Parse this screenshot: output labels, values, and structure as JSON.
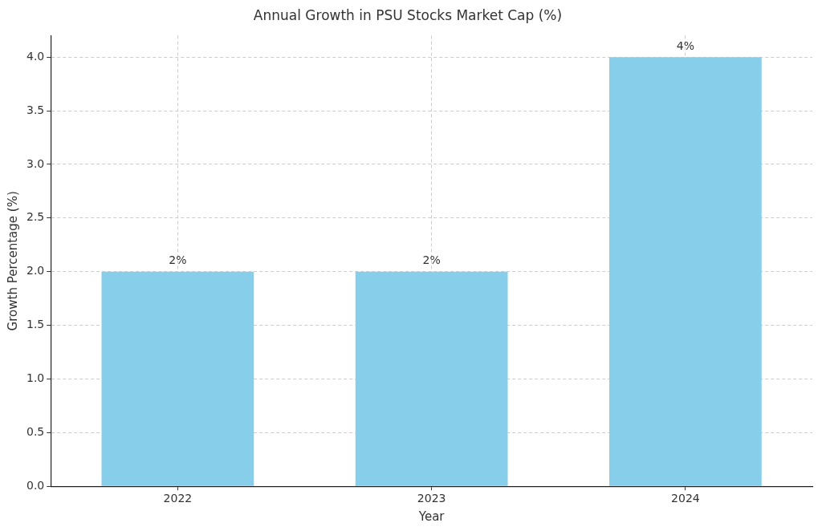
{
  "chart_data": {
    "type": "bar",
    "title": "Annual Growth in PSU Stocks Market Cap (%)",
    "x_label": "Year",
    "y_label": "Growth Percentage (%)",
    "categories": [
      "2022",
      "2023",
      "2024"
    ],
    "values": [
      2,
      2,
      4
    ],
    "value_labels": [
      "2%",
      "2%",
      "4%"
    ],
    "data_labels": true,
    "color": "#87ceeb",
    "ylim": [
      0,
      4.2
    ],
    "yticks": [
      {
        "value": 0,
        "label": "0.0"
      },
      {
        "value": 0.5,
        "label": "0.5"
      },
      {
        "value": 1,
        "label": "1.0"
      },
      {
        "value": 1.5,
        "label": "1.5"
      },
      {
        "value": 2,
        "label": "2.0"
      },
      {
        "value": 2.5,
        "label": "2.5"
      },
      {
        "value": 3,
        "label": "3.0"
      },
      {
        "value": 3.5,
        "label": "3.5"
      },
      {
        "value": 4,
        "label": "4.0"
      }
    ],
    "grid": true
  }
}
